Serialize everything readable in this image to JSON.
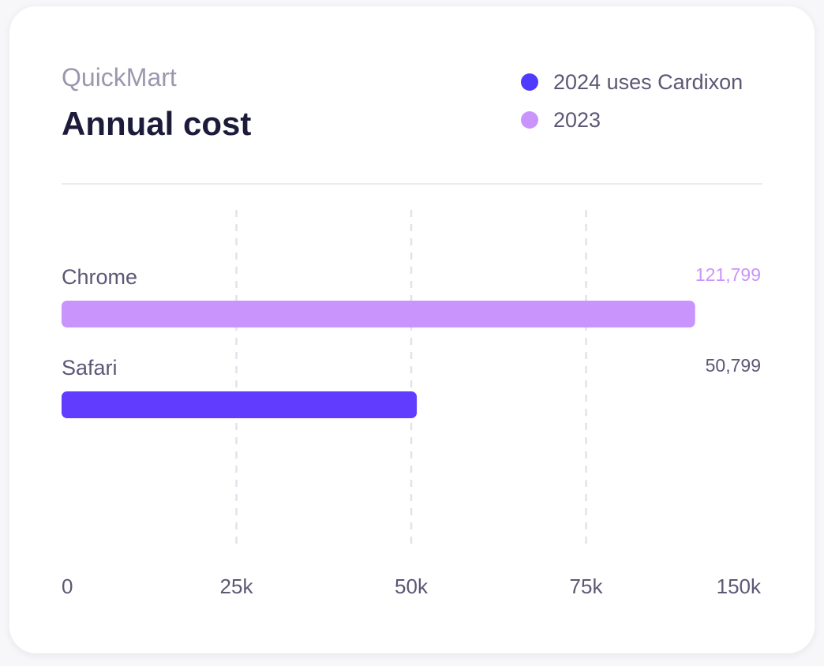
{
  "header": {
    "subtitle": "QuickMart",
    "title": "Annual cost"
  },
  "legend": [
    {
      "label": "2024 uses Cardixon",
      "color": "#4e3bff"
    },
    {
      "label": "2023",
      "color": "#c994fb"
    }
  ],
  "chart_data": {
    "type": "bar",
    "orientation": "horizontal",
    "title": "Annual cost",
    "categories": [
      "Chrome",
      "Safari"
    ],
    "values": [
      121799,
      50799
    ],
    "value_labels": [
      "121,799",
      "50,799"
    ],
    "bar_colors": [
      "#c994fb",
      "#613cff"
    ],
    "value_label_colors": [
      "#c994fb",
      "#5b5875"
    ],
    "x_ticks": [
      {
        "label": "0",
        "value": 0
      },
      {
        "label": "25k",
        "value": 25000
      },
      {
        "label": "50k",
        "value": 50000
      },
      {
        "label": "75k",
        "value": 75000
      },
      {
        "label": "150k",
        "value": 150000
      }
    ],
    "x_scale": "piecewise-linear (tick labels evenly spaced)",
    "gridlines": "vertical dashed at 25k, 50k, 75k",
    "legend_position": "top-right"
  },
  "colors": {
    "card_background": "#ffffff",
    "title": "#1d1b3a",
    "muted_text": "#9a98ad",
    "axis_text": "#5b5875",
    "grid": "#e2e2ea"
  }
}
